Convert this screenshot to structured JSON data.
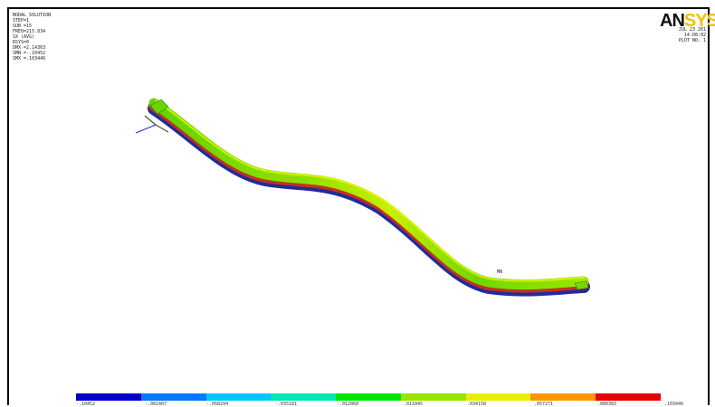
{
  "solution_info": {
    "title": "NODAL SOLUTION",
    "lines": [
      "STEP=1",
      "SUB =15",
      "FREQ=215.834",
      "SX       (AVG)",
      "RSYS=0",
      "DMX =2.14363",
      "SMN =-.10452",
      "SMX =.103446"
    ]
  },
  "logo": {
    "part1": "AN",
    "part2": "SYS"
  },
  "date_block": {
    "date": "JUL 23 201",
    "time": "14:08:02",
    "plot": "PLOT NO. 1"
  },
  "node_marker": "MN",
  "legend": {
    "colors": [
      "#0000c8",
      "#0078ff",
      "#00c8ff",
      "#00e6b4",
      "#00e600",
      "#96e600",
      "#e6f000",
      "#ff9600",
      "#e60000"
    ],
    "labels": [
      "-.10452",
      "-.081407",
      "-.058294",
      "-.035181",
      "-.012068",
      ".011045",
      ".034158",
      ".057271",
      ".080383",
      ".103446"
    ]
  }
}
